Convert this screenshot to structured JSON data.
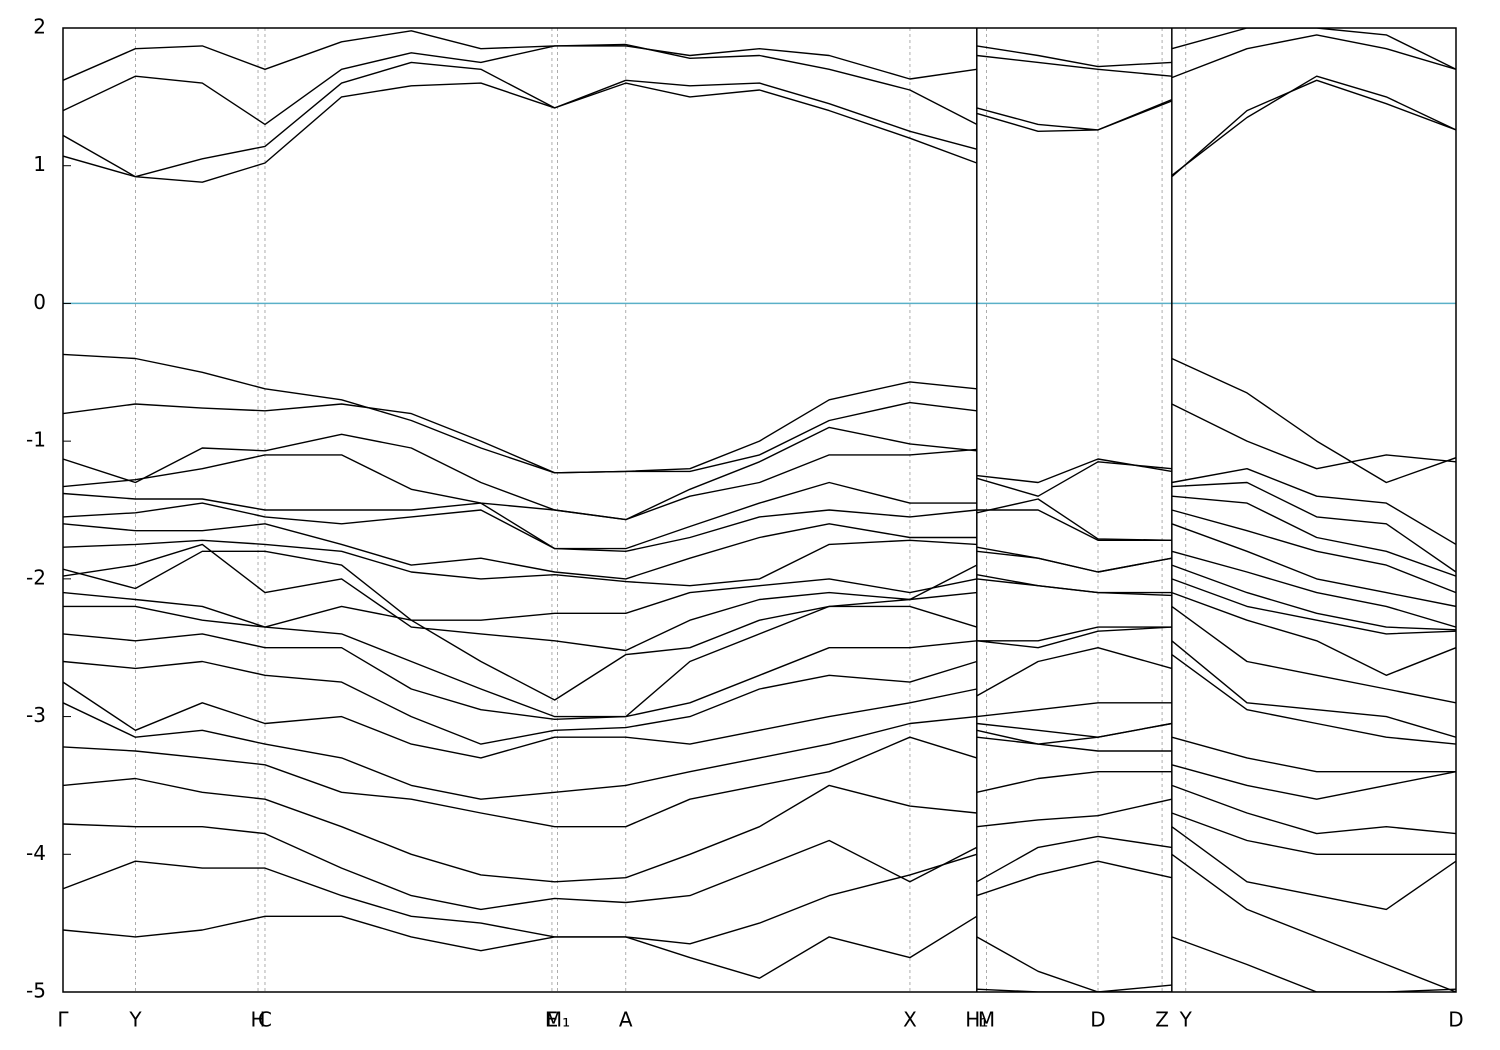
{
  "chart_data": {
    "type": "line",
    "xlim": [
      0,
      1
    ],
    "ylim": [
      -5,
      2
    ],
    "yticks": [
      -5,
      -4,
      -3,
      -2,
      -1,
      0,
      1,
      2
    ],
    "xticks": [
      {
        "value": 0,
        "label": "Γ"
      },
      {
        "value": 0.052,
        "label": "Y"
      },
      {
        "value": 0.14,
        "label": "H"
      },
      {
        "value": 0.145,
        "label": "C"
      },
      {
        "value": 0.351,
        "label": "E"
      },
      {
        "value": 0.355,
        "label": "M₁"
      },
      {
        "value": 0.404,
        "label": "A"
      },
      {
        "value": 0.608,
        "label": "X"
      },
      {
        "value": 0.656,
        "label": "H₁"
      },
      {
        "value": 0.663,
        "label": "M"
      },
      {
        "value": 0.743,
        "label": "D"
      },
      {
        "value": 0.789,
        "label": "Z"
      },
      {
        "value": 0.806,
        "label": "Y"
      },
      {
        "value": 1,
        "label": "D"
      }
    ],
    "breaks": [
      0.656,
      0.796
    ],
    "grid": true,
    "line_color": "#000000",
    "zero_line": {
      "value": 0,
      "color": "#5ab0c8"
    },
    "x": [
      0,
      0.052,
      0.1,
      0.145,
      0.2,
      0.25,
      0.3,
      0.353,
      0.404,
      0.45,
      0.5,
      0.55,
      0.608,
      0.656,
      0.656,
      0.656,
      0.7,
      0.743,
      0.796,
      0.796,
      0.796,
      0.85,
      0.9,
      0.95,
      1
    ],
    "series": [
      {
        "values": [
          1.07,
          0.92,
          0.88,
          1.02,
          1.5,
          1.58,
          1.6,
          1.42,
          1.6,
          1.5,
          1.55,
          1.4,
          1.2,
          1.02,
          null,
          1.42,
          1.3,
          1.26,
          1.47,
          null,
          0.92,
          1.4,
          1.62,
          1.45,
          1.26
        ]
      },
      {
        "values": [
          1.22,
          0.92,
          1.05,
          1.14,
          1.6,
          1.75,
          1.7,
          1.42,
          1.62,
          1.58,
          1.6,
          1.45,
          1.25,
          1.12,
          null,
          1.38,
          1.25,
          1.26,
          1.48,
          null,
          0.93,
          1.35,
          1.65,
          1.5,
          1.26
        ]
      },
      {
        "values": [
          1.4,
          1.65,
          1.6,
          1.3,
          1.7,
          1.82,
          1.75,
          1.87,
          1.88,
          1.78,
          1.8,
          1.7,
          1.55,
          1.3,
          null,
          1.8,
          1.75,
          1.7,
          1.65,
          null,
          1.64,
          1.85,
          1.95,
          1.85,
          1.7
        ]
      },
      {
        "values": [
          1.62,
          1.85,
          1.87,
          1.7,
          1.9,
          1.98,
          1.85,
          1.87,
          1.87,
          1.8,
          1.85,
          1.8,
          1.63,
          1.7,
          null,
          1.87,
          1.8,
          1.72,
          1.75,
          null,
          1.85,
          2.0,
          2.0,
          1.95,
          1.7
        ]
      },
      {
        "values": [
          -0.37,
          -0.4,
          -0.5,
          -0.62,
          -0.7,
          -0.85,
          -1.05,
          -1.23,
          -1.22,
          -1.2,
          -1.0,
          -0.7,
          -0.57,
          -0.62,
          null,
          -1.25,
          -1.3,
          -1.13,
          -1.22,
          null,
          -0.4,
          -0.65,
          -1.0,
          -1.3,
          -1.12
        ]
      },
      {
        "values": [
          -0.8,
          -0.73,
          -0.76,
          -0.78,
          -0.73,
          -0.8,
          -1.0,
          -1.23,
          -1.22,
          -1.22,
          -1.1,
          -0.85,
          -0.72,
          -0.78,
          null,
          -1.27,
          -1.4,
          -1.15,
          -1.2,
          null,
          -0.73,
          -1.0,
          -1.2,
          -1.1,
          -1.15
        ]
      },
      {
        "values": [
          -1.13,
          -1.3,
          -1.05,
          -1.07,
          -0.95,
          -1.05,
          -1.3,
          -1.5,
          -1.57,
          -1.35,
          -1.15,
          -0.9,
          -1.02,
          -1.07,
          null,
          -1.52,
          -1.42,
          -1.71,
          -1.72,
          null,
          -1.3,
          -1.2,
          -1.4,
          -1.45,
          -1.75
        ]
      },
      {
        "values": [
          -1.33,
          -1.28,
          -1.2,
          -1.1,
          -1.1,
          -1.35,
          -1.45,
          -1.5,
          -1.57,
          -1.4,
          -1.3,
          -1.1,
          -1.1,
          -1.06,
          null,
          -1.5,
          -1.5,
          -1.72,
          -1.72,
          null,
          -1.33,
          -1.3,
          -1.55,
          -1.6,
          -1.95
        ]
      },
      {
        "values": [
          -1.38,
          -1.42,
          -1.42,
          -1.5,
          -1.5,
          -1.5,
          -1.45,
          -1.78,
          -1.78,
          -1.62,
          -1.45,
          -1.3,
          -1.45,
          -1.45,
          null,
          -1.77,
          -1.85,
          -1.95,
          -1.85,
          null,
          -1.4,
          -1.45,
          -1.7,
          -1.8,
          -1.98
        ]
      },
      {
        "values": [
          -1.55,
          -1.52,
          -1.45,
          -1.55,
          -1.6,
          -1.55,
          -1.5,
          -1.78,
          -1.8,
          -1.7,
          -1.55,
          -1.5,
          -1.55,
          -1.5,
          null,
          -1.8,
          -1.85,
          -1.95,
          -1.85,
          null,
          -1.5,
          -1.65,
          -1.8,
          -1.9,
          -2.1
        ]
      },
      {
        "values": [
          -1.6,
          -1.65,
          -1.65,
          -1.6,
          -1.75,
          -1.9,
          -1.85,
          -1.95,
          -2.0,
          -1.85,
          -1.7,
          -1.6,
          -1.7,
          -1.7,
          null,
          -1.97,
          -2.05,
          -2.1,
          -2.1,
          null,
          -1.6,
          -1.8,
          -2.0,
          -2.1,
          -2.2
        ]
      },
      {
        "values": [
          -1.77,
          -1.75,
          -1.72,
          -1.75,
          -1.8,
          -1.95,
          -2.0,
          -1.97,
          -2.02,
          -2.05,
          -2.0,
          -1.75,
          -1.72,
          -1.75,
          null,
          -2.0,
          -2.05,
          -2.1,
          -2.12,
          null,
          -1.8,
          -1.95,
          -2.1,
          -2.2,
          -2.35
        ]
      },
      {
        "values": [
          -1.93,
          -2.07,
          -1.8,
          -1.8,
          -1.9,
          -2.3,
          -2.3,
          -2.25,
          -2.25,
          -2.1,
          -2.05,
          -2.0,
          -2.1,
          -2.0,
          null,
          -2.45,
          -2.45,
          -2.35,
          -2.35,
          null,
          -1.9,
          -2.1,
          -2.25,
          -2.35,
          -2.37
        ]
      },
      {
        "values": [
          -1.98,
          -1.9,
          -1.75,
          -2.1,
          -2.0,
          -2.35,
          -2.4,
          -2.45,
          -2.52,
          -2.3,
          -2.15,
          -2.1,
          -2.15,
          -1.9,
          null,
          -2.45,
          -2.5,
          -2.38,
          -2.35,
          null,
          -2.0,
          -2.2,
          -2.3,
          -2.4,
          -2.38
        ]
      },
      {
        "values": [
          -2.1,
          -2.15,
          -2.2,
          -2.35,
          -2.2,
          -2.3,
          -2.6,
          -2.88,
          -2.55,
          -2.5,
          -2.3,
          -2.2,
          -2.15,
          -2.1,
          null,
          -2.85,
          -2.6,
          -2.5,
          -2.65,
          null,
          -2.1,
          -2.3,
          -2.45,
          -2.7,
          -2.5
        ]
      },
      {
        "values": [
          -2.2,
          -2.2,
          -2.3,
          -2.35,
          -2.4,
          -2.6,
          -2.8,
          -3.0,
          -3.0,
          -2.6,
          -2.4,
          -2.2,
          -2.2,
          -2.35,
          null,
          -3.0,
          -2.95,
          -2.9,
          -2.9,
          null,
          -2.2,
          -2.6,
          -2.7,
          -2.8,
          -2.9
        ]
      },
      {
        "values": [
          -2.4,
          -2.45,
          -2.4,
          -2.5,
          -2.5,
          -2.8,
          -2.95,
          -3.02,
          -3.0,
          -2.9,
          -2.7,
          -2.5,
          -2.5,
          -2.45,
          null,
          -3.05,
          -3.1,
          -3.15,
          -3.05,
          null,
          -2.45,
          -2.9,
          -2.95,
          -3.0,
          -3.15
        ]
      },
      {
        "values": [
          -2.6,
          -2.65,
          -2.6,
          -2.7,
          -2.75,
          -3.0,
          -3.2,
          -3.1,
          -3.08,
          -3.0,
          -2.8,
          -2.7,
          -2.75,
          -2.6,
          null,
          -3.15,
          -3.2,
          -3.15,
          -3.05,
          null,
          -2.55,
          -2.95,
          -3.05,
          -3.15,
          -3.2
        ]
      },
      {
        "values": [
          -2.75,
          -3.1,
          -2.9,
          -3.05,
          -3.0,
          -3.2,
          -3.3,
          -3.15,
          -3.15,
          -3.2,
          -3.1,
          -3.0,
          -2.9,
          -2.8,
          null,
          -3.1,
          -3.2,
          -3.25,
          -3.25,
          null,
          -3.15,
          -3.3,
          -3.4,
          -3.4,
          -3.4
        ]
      },
      {
        "values": [
          -2.9,
          -3.15,
          -3.1,
          -3.2,
          -3.3,
          -3.5,
          -3.6,
          -3.55,
          -3.5,
          -3.4,
          -3.3,
          -3.2,
          -3.05,
          -3.0,
          null,
          -3.55,
          -3.45,
          -3.4,
          -3.4,
          null,
          -3.35,
          -3.5,
          -3.6,
          -3.5,
          -3.4
        ]
      },
      {
        "values": [
          -3.22,
          -3.25,
          -3.3,
          -3.35,
          -3.55,
          -3.6,
          -3.7,
          -3.8,
          -3.8,
          -3.6,
          -3.5,
          -3.4,
          -3.15,
          -3.3,
          null,
          -3.8,
          -3.75,
          -3.72,
          -3.6,
          null,
          -3.5,
          -3.7,
          -3.85,
          -3.8,
          -3.85
        ]
      },
      {
        "values": [
          -3.5,
          -3.45,
          -3.55,
          -3.6,
          -3.8,
          -4.0,
          -4.15,
          -4.2,
          -4.17,
          -4.0,
          -3.8,
          -3.5,
          -3.65,
          -3.7,
          null,
          -4.2,
          -3.95,
          -3.87,
          -3.95,
          null,
          -3.7,
          -3.9,
          -4.0,
          -4.0,
          -4.0
        ]
      },
      {
        "values": [
          -3.78,
          -3.8,
          -3.8,
          -3.85,
          -4.1,
          -4.3,
          -4.4,
          -4.32,
          -4.35,
          -4.3,
          -4.1,
          -3.9,
          -4.2,
          -3.95,
          null,
          -4.3,
          -4.15,
          -4.05,
          -4.17,
          null,
          -3.8,
          -4.2,
          -4.3,
          -4.4,
          -4.05
        ]
      },
      {
        "values": [
          -4.25,
          -4.05,
          -4.1,
          -4.1,
          -4.3,
          -4.45,
          -4.5,
          -4.6,
          -4.6,
          -4.65,
          -4.5,
          -4.3,
          -4.15,
          -4.0,
          null,
          -4.6,
          -4.85,
          -5.0,
          -4.95,
          null,
          -4.0,
          -4.4,
          -4.6,
          -4.8,
          -5.0
        ]
      },
      {
        "values": [
          -4.55,
          -4.6,
          -4.55,
          -4.45,
          -4.45,
          -4.6,
          -4.7,
          -4.6,
          -4.6,
          -4.75,
          -4.9,
          -4.6,
          -4.75,
          -4.45,
          null,
          -4.98,
          -5.0,
          -5.0,
          -5.0,
          null,
          -4.6,
          -4.8,
          -5.0,
          -5.0,
          -4.98
        ]
      }
    ]
  }
}
